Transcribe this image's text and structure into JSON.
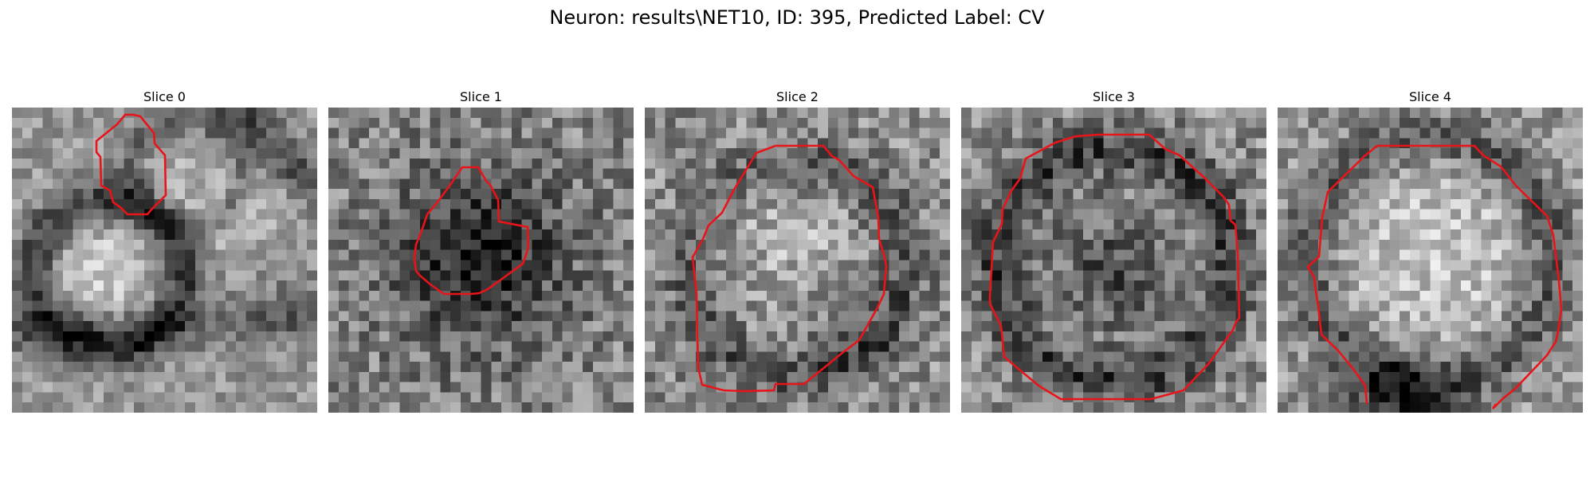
{
  "figure": {
    "title": "Neuron: results\\NET10, ID: 395, Predicted Label: CV"
  },
  "panels": [
    {
      "title": "Slice 0"
    },
    {
      "title": "Slice 1"
    },
    {
      "title": "Slice 2"
    },
    {
      "title": "Slice 3"
    },
    {
      "title": "Slice 4"
    }
  ],
  "colors": {
    "contour": "#e8141a",
    "background": "#ffffff"
  }
}
